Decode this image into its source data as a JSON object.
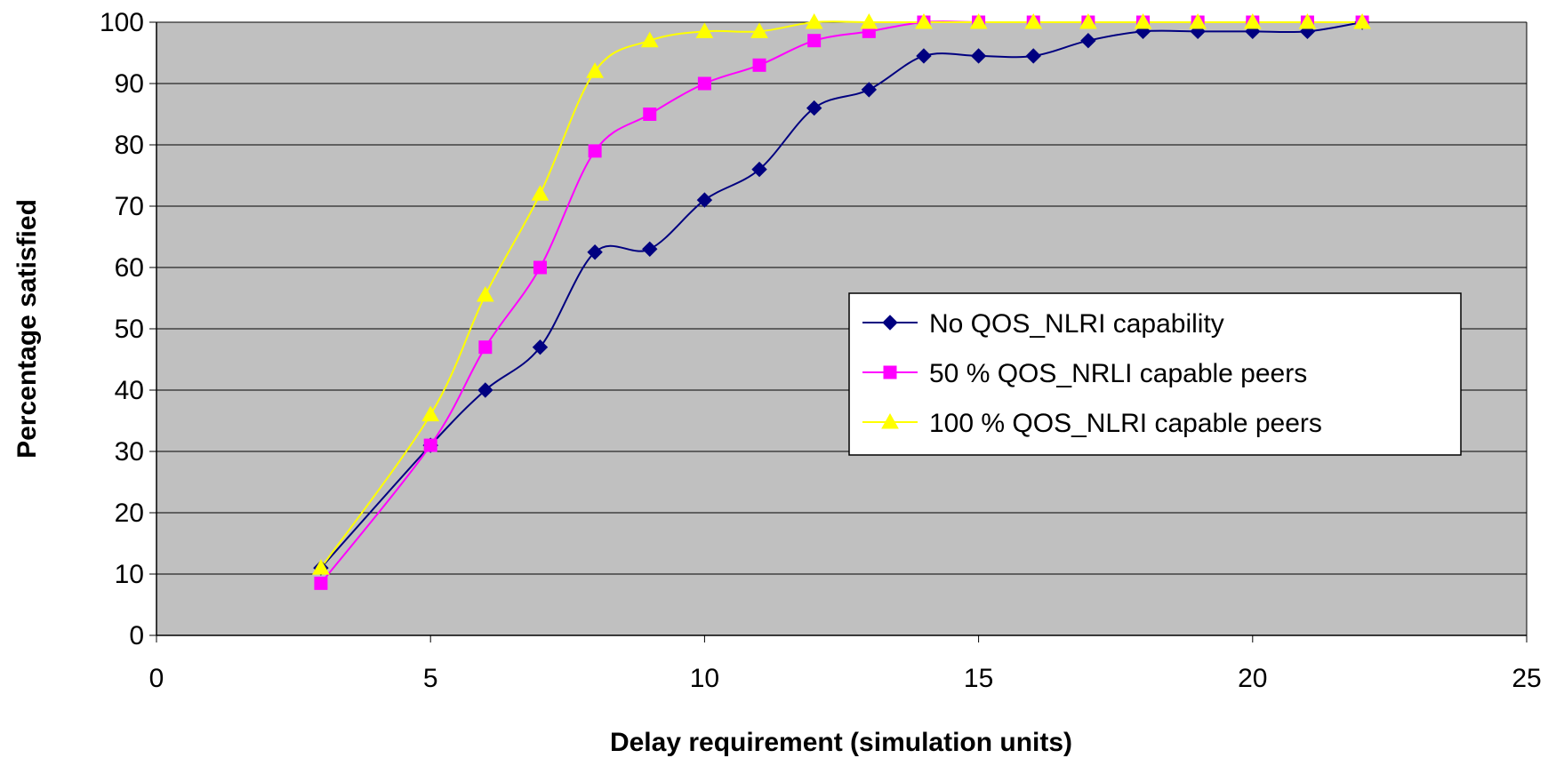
{
  "chart_data": {
    "type": "line",
    "title": "",
    "xlabel": "Delay requirement (simulation units)",
    "ylabel": "Percentage satisfied",
    "xlim": [
      0,
      25
    ],
    "ylim": [
      0,
      100
    ],
    "xticks": [
      0,
      5,
      10,
      15,
      20,
      25
    ],
    "yticks": [
      0,
      10,
      20,
      30,
      40,
      50,
      60,
      70,
      80,
      90,
      100
    ],
    "grid": "horizontal",
    "plot_background": "#C0C0C0",
    "legend_position": "right",
    "x": [
      3,
      5,
      6,
      7,
      8,
      9,
      10,
      11,
      12,
      13,
      14,
      15,
      16,
      17,
      18,
      19,
      20,
      21,
      22
    ],
    "series": [
      {
        "name": "No QOS_NLRI capability",
        "color": "#000080",
        "marker": "diamond",
        "values": [
          11,
          31,
          40,
          47,
          62.5,
          63,
          71,
          76,
          86,
          89,
          94.5,
          94.5,
          94.5,
          97,
          98.5,
          98.5,
          98.5,
          98.5,
          100
        ]
      },
      {
        "name": "50 % QOS_NRLI capable peers",
        "color": "#FF00FF",
        "marker": "square",
        "values": [
          8.5,
          31,
          47,
          60,
          79,
          85,
          90,
          93,
          97,
          98.5,
          100,
          100,
          100,
          100,
          100,
          100,
          100,
          100,
          100
        ]
      },
      {
        "name": "100 % QOS_NLRI capable peers",
        "color": "#FFFF00",
        "marker": "triangle",
        "values": [
          11,
          36,
          55.5,
          72,
          92,
          97,
          98.5,
          98.5,
          100,
          100,
          100,
          100,
          100,
          100,
          100,
          100,
          100,
          100,
          100
        ]
      }
    ]
  }
}
